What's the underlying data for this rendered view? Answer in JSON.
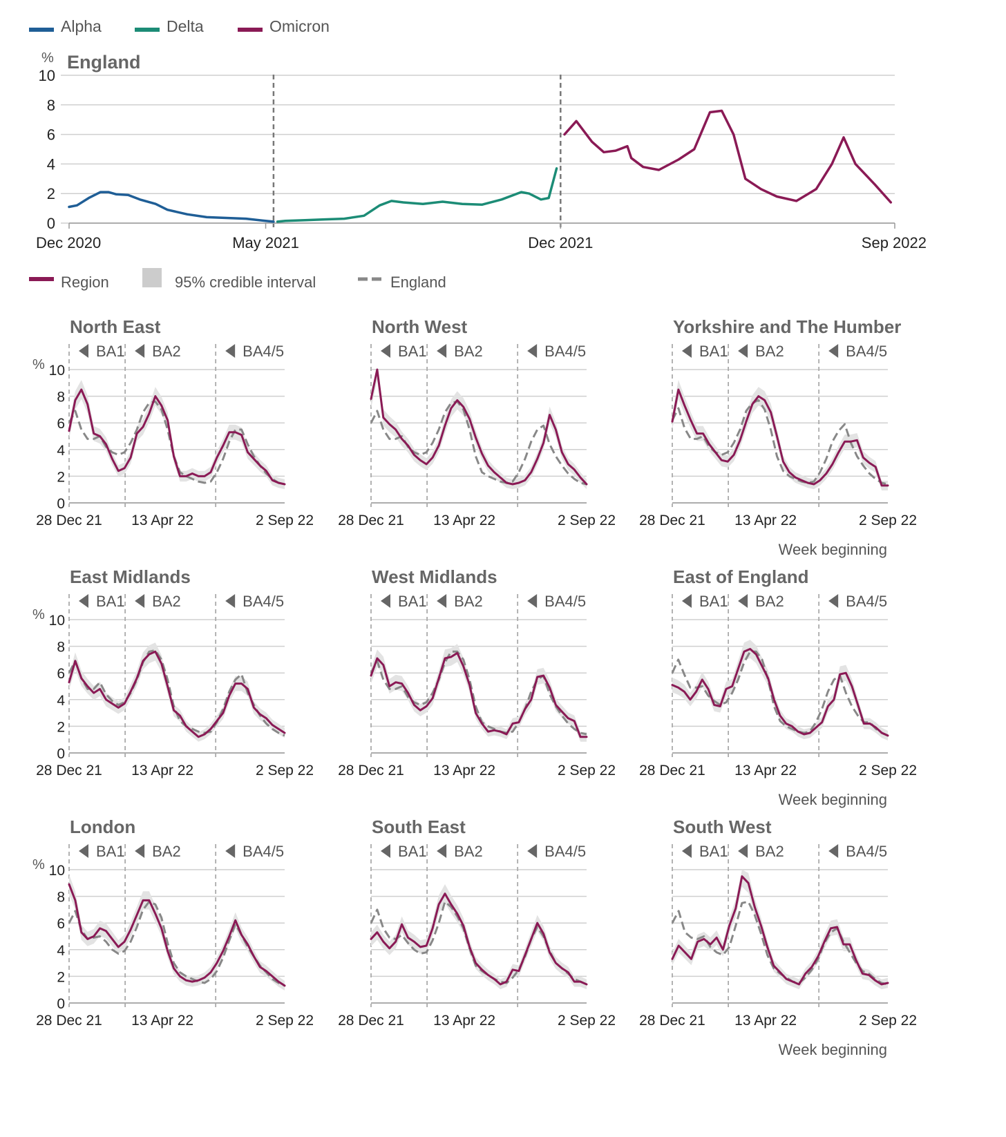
{
  "colors": {
    "alpha": "#1f5e96",
    "delta": "#1c8c76",
    "omicron": "#8a1a55",
    "england": "#888888",
    "ci": "#cccccc",
    "grid": "#cfcfcf",
    "text": "#222222",
    "muted": "#555555"
  },
  "top_legend": {
    "items": [
      {
        "label": "Alpha",
        "color": "#1f5e96"
      },
      {
        "label": "Delta",
        "color": "#1c8c76"
      },
      {
        "label": "Omicron",
        "color": "#8a1a55"
      }
    ]
  },
  "region_legend": {
    "region": "Region",
    "ci": "95% credible interval",
    "england": "England"
  },
  "week_beginning": "Week beginning",
  "chart_data": [
    {
      "type": "line",
      "title": "England",
      "ylabel": "%",
      "ylim": [
        0,
        10
      ],
      "yticks": [
        0,
        2,
        4,
        6,
        8,
        10
      ],
      "xlim": [
        0,
        21
      ],
      "xtick_labels": [
        {
          "x": 0,
          "label": "Dec 2020"
        },
        {
          "x": 5,
          "label": "May 2021"
        },
        {
          "x": 12.5,
          "label": "Dec 2021"
        },
        {
          "x": 21,
          "label": "Sep 2022"
        }
      ],
      "vlines": [
        5.2,
        12.5
      ],
      "series": [
        {
          "name": "Alpha",
          "color": "#1f5e96",
          "x": [
            0,
            0.2,
            0.5,
            0.8,
            1.0,
            1.2,
            1.5,
            1.8,
            2.2,
            2.5,
            3.0,
            3.5,
            4.0,
            4.5,
            5.0,
            5.2
          ],
          "y": [
            1.1,
            1.2,
            1.7,
            2.1,
            2.1,
            1.95,
            1.9,
            1.6,
            1.3,
            0.9,
            0.6,
            0.4,
            0.35,
            0.3,
            0.15,
            0.1
          ]
        },
        {
          "name": "Delta",
          "color": "#1c8c76",
          "x": [
            5.3,
            5.5,
            6.0,
            6.5,
            7.0,
            7.5,
            7.9,
            8.2,
            8.5,
            9.0,
            9.5,
            10.0,
            10.5,
            11.0,
            11.5,
            11.7,
            12.0,
            12.2,
            12.4
          ],
          "y": [
            0.1,
            0.15,
            0.2,
            0.25,
            0.3,
            0.5,
            1.2,
            1.5,
            1.4,
            1.3,
            1.45,
            1.3,
            1.25,
            1.6,
            2.1,
            2.0,
            1.6,
            1.7,
            3.7
          ]
        },
        {
          "name": "Omicron",
          "color": "#8a1a55",
          "x": [
            12.6,
            12.9,
            13.3,
            13.6,
            13.9,
            14.2,
            14.3,
            14.6,
            15.0,
            15.5,
            15.9,
            16.3,
            16.6,
            16.9,
            17.2,
            17.6,
            18.0,
            18.5,
            19.0,
            19.4,
            19.7,
            20.0,
            20.5,
            20.9
          ],
          "y": [
            6.0,
            6.9,
            5.5,
            4.8,
            4.9,
            5.2,
            4.4,
            3.8,
            3.6,
            4.3,
            5.0,
            7.5,
            7.6,
            6.0,
            3.0,
            2.3,
            1.8,
            1.5,
            2.3,
            4.0,
            5.8,
            4.0,
            2.6,
            1.4
          ]
        }
      ]
    },
    {
      "type": "line",
      "title": "North East",
      "ylabel": "%",
      "ylim": [
        0,
        10
      ],
      "yticks": [
        0,
        2,
        4,
        6,
        8,
        10
      ],
      "variant_markers": [
        "BA1",
        "BA2",
        "BA4/5"
      ],
      "xtick_labels": [
        "28 Dec 21",
        "13 Apr 22",
        "2 Sep 22"
      ],
      "region": [
        5.4,
        7.7,
        8.5,
        7.4,
        5.2,
        5.0,
        4.4,
        3.3,
        2.4,
        2.6,
        3.4,
        5.2,
        5.7,
        6.7,
        8.0,
        7.3,
        6.2,
        3.5,
        2.0,
        2.0,
        2.2,
        2.0,
        2.0,
        2.3,
        3.4,
        4.3,
        5.3,
        5.3,
        5.1,
        3.8,
        3.3,
        2.8,
        2.4,
        1.7,
        1.5,
        1.4
      ],
      "england": [
        6.0,
        6.9,
        5.5,
        4.8,
        4.8,
        5.0,
        4.2,
        3.8,
        3.6,
        3.8,
        4.5,
        5.5,
        6.8,
        7.5,
        7.6,
        7.0,
        5.5,
        3.5,
        2.3,
        2.0,
        1.8,
        1.6,
        1.5,
        1.6,
        2.3,
        3.3,
        4.6,
        5.5,
        5.5,
        4.4,
        3.5,
        2.8,
        2.2,
        1.8,
        1.5,
        1.4
      ]
    },
    {
      "type": "line",
      "title": "North West",
      "ylabel": "%",
      "ylim": [
        0,
        10
      ],
      "yticks": [
        0,
        2,
        4,
        6,
        8,
        10
      ],
      "variant_markers": [
        "BA1",
        "BA2",
        "BA4/5"
      ],
      "xtick_labels": [
        "28 Dec 21",
        "13 Apr 22",
        "2 Sep 22"
      ],
      "region": [
        7.8,
        10.0,
        6.4,
        5.9,
        5.5,
        4.8,
        4.3,
        3.6,
        3.2,
        2.9,
        3.4,
        4.3,
        5.8,
        7.1,
        7.7,
        7.2,
        6.3,
        4.9,
        3.7,
        2.8,
        2.3,
        1.9,
        1.5,
        1.4,
        1.5,
        1.7,
        2.3,
        3.3,
        4.5,
        6.6,
        5.5,
        3.8,
        2.9,
        2.5,
        1.9,
        1.4
      ],
      "england": [
        6.0,
        6.9,
        5.5,
        4.8,
        4.8,
        5.0,
        4.2,
        3.8,
        3.6,
        3.8,
        4.5,
        5.5,
        6.8,
        7.5,
        7.6,
        7.0,
        5.5,
        3.5,
        2.3,
        2.0,
        1.8,
        1.6,
        1.5,
        1.6,
        2.3,
        3.3,
        4.6,
        5.5,
        5.8,
        4.4,
        3.5,
        2.8,
        2.2,
        1.8,
        1.5,
        1.4
      ]
    },
    {
      "type": "line",
      "title": "Yorkshire and The Humber",
      "ylabel": "%",
      "ylim": [
        0,
        10
      ],
      "yticks": [
        0,
        2,
        4,
        6,
        8,
        10
      ],
      "variant_markers": [
        "BA1",
        "BA2",
        "BA4/5"
      ],
      "xtick_labels": [
        "28 Dec 21",
        "13 Apr 22",
        "2 Sep 22"
      ],
      "region": [
        6.1,
        8.5,
        7.3,
        6.2,
        5.2,
        5.2,
        4.4,
        3.8,
        3.2,
        3.1,
        3.6,
        4.7,
        6.1,
        7.4,
        8.0,
        7.7,
        6.8,
        5.0,
        3.1,
        2.3,
        1.9,
        1.7,
        1.5,
        1.4,
        1.7,
        2.2,
        2.9,
        3.8,
        4.6,
        4.6,
        4.7,
        3.4,
        3.0,
        2.7,
        1.3,
        1.3
      ],
      "england": [
        6.2,
        7.1,
        5.6,
        4.8,
        4.8,
        5.0,
        4.2,
        3.8,
        3.6,
        3.8,
        4.5,
        5.5,
        6.9,
        7.5,
        7.7,
        7.0,
        5.5,
        3.5,
        2.4,
        2.0,
        1.8,
        1.6,
        1.5,
        1.6,
        2.3,
        3.3,
        4.6,
        5.4,
        5.9,
        4.5,
        3.5,
        2.8,
        2.2,
        1.8,
        1.5,
        1.4
      ]
    },
    {
      "type": "line",
      "title": "East Midlands",
      "ylabel": "%",
      "ylim": [
        0,
        10
      ],
      "yticks": [
        0,
        2,
        4,
        6,
        8,
        10
      ],
      "variant_markers": [
        "BA1",
        "BA2",
        "BA4/5"
      ],
      "xtick_labels": [
        "28 Dec 21",
        "13 Apr 22",
        "2 Sep 22"
      ],
      "region": [
        5.3,
        6.9,
        5.6,
        5.0,
        4.5,
        4.8,
        4.0,
        3.7,
        3.4,
        3.7,
        4.6,
        5.6,
        6.9,
        7.4,
        7.6,
        6.7,
        5.0,
        3.2,
        2.8,
        2.0,
        1.6,
        1.2,
        1.4,
        1.8,
        2.4,
        3.0,
        4.3,
        5.2,
        5.2,
        4.8,
        3.4,
        2.9,
        2.6,
        2.1,
        1.8,
        1.5
      ],
      "england": [
        6.0,
        6.9,
        5.6,
        4.8,
        4.8,
        5.3,
        4.4,
        3.9,
        3.6,
        3.8,
        4.5,
        5.5,
        6.8,
        7.6,
        7.7,
        7.0,
        5.5,
        3.5,
        2.4,
        2.0,
        1.8,
        1.6,
        1.5,
        1.6,
        2.3,
        3.3,
        4.6,
        5.5,
        5.9,
        4.5,
        3.6,
        2.8,
        2.2,
        1.8,
        1.5,
        1.3
      ]
    },
    {
      "type": "line",
      "title": "West Midlands",
      "ylabel": "%",
      "ylim": [
        0,
        10
      ],
      "yticks": [
        0,
        2,
        4,
        6,
        8,
        10
      ],
      "variant_markers": [
        "BA1",
        "BA2",
        "BA4/5"
      ],
      "xtick_labels": [
        "28 Dec 21",
        "13 Apr 22",
        "2 Sep 22"
      ],
      "region": [
        5.8,
        7.1,
        6.6,
        5.0,
        5.3,
        5.2,
        4.5,
        3.6,
        3.2,
        3.5,
        4.1,
        5.6,
        7.1,
        7.2,
        7.5,
        6.5,
        5.1,
        3.0,
        2.2,
        1.6,
        1.7,
        1.6,
        1.4,
        2.2,
        2.3,
        3.3,
        4.0,
        5.7,
        5.8,
        4.9,
        3.6,
        3.1,
        2.6,
        2.4,
        1.2,
        1.2
      ],
      "england": [
        6.0,
        6.9,
        5.5,
        4.8,
        4.8,
        5.0,
        4.2,
        3.8,
        3.6,
        3.8,
        4.5,
        5.5,
        6.8,
        7.6,
        7.6,
        7.0,
        5.5,
        3.5,
        2.3,
        2.0,
        1.8,
        1.6,
        1.5,
        1.6,
        2.3,
        3.3,
        4.6,
        5.5,
        5.8,
        4.4,
        3.5,
        2.8,
        2.2,
        1.8,
        1.5,
        1.4
      ]
    },
    {
      "type": "line",
      "title": "East of England",
      "ylabel": "%",
      "ylim": [
        0,
        10
      ],
      "yticks": [
        0,
        2,
        4,
        6,
        8,
        10
      ],
      "variant_markers": [
        "BA1",
        "BA2",
        "BA4/5"
      ],
      "xtick_labels": [
        "28 Dec 21",
        "13 Apr 22",
        "2 Sep 22"
      ],
      "region": [
        5.1,
        4.9,
        4.6,
        4.0,
        4.6,
        5.5,
        4.8,
        3.6,
        3.5,
        4.8,
        5.0,
        6.3,
        7.6,
        7.8,
        7.4,
        6.5,
        5.6,
        4.0,
        2.8,
        2.2,
        2.0,
        1.6,
        1.4,
        1.5,
        1.9,
        2.3,
        3.5,
        4.0,
        5.9,
        6.0,
        5.0,
        3.6,
        2.2,
        2.2,
        1.9,
        1.5,
        1.3
      ],
      "england": [
        6.0,
        7.0,
        5.9,
        4.9,
        4.9,
        5.0,
        4.3,
        3.9,
        3.6,
        3.8,
        4.5,
        5.5,
        6.8,
        7.6,
        7.6,
        7.0,
        5.5,
        3.5,
        2.4,
        2.0,
        1.8,
        1.6,
        1.5,
        1.6,
        2.3,
        3.3,
        4.6,
        5.5,
        5.8,
        4.5,
        3.5,
        2.8,
        2.3,
        2.3,
        1.8,
        1.5,
        1.3
      ]
    },
    {
      "type": "line",
      "title": "London",
      "ylabel": "%",
      "ylim": [
        0,
        10
      ],
      "yticks": [
        0,
        2,
        4,
        6,
        8,
        10
      ],
      "variant_markers": [
        "BA1",
        "BA2",
        "BA4/5"
      ],
      "xtick_labels": [
        "28 Dec 21",
        "13 Apr 22",
        "2 Sep 22"
      ],
      "region": [
        8.9,
        7.7,
        5.3,
        4.8,
        5.0,
        5.6,
        5.4,
        4.8,
        4.2,
        4.6,
        5.5,
        6.6,
        7.7,
        7.7,
        6.7,
        5.6,
        3.9,
        2.6,
        2.0,
        1.7,
        1.6,
        1.7,
        1.9,
        2.3,
        3.0,
        3.9,
        5.0,
        6.2,
        5.1,
        4.4,
        3.5,
        2.7,
        2.4,
        2.0,
        1.6,
        1.3
      ],
      "england": [
        6.0,
        6.9,
        5.5,
        4.8,
        4.9,
        5.0,
        4.6,
        4.0,
        3.7,
        3.9,
        4.6,
        5.7,
        7.0,
        7.6,
        7.4,
        6.4,
        4.5,
        3.0,
        2.3,
        2.0,
        1.8,
        1.6,
        1.5,
        1.8,
        2.4,
        3.4,
        4.7,
        5.9,
        5.1,
        4.2,
        3.5,
        2.8,
        2.3,
        1.8,
        1.5,
        1.3
      ]
    },
    {
      "type": "line",
      "title": "South East",
      "ylabel": "%",
      "ylim": [
        0,
        10
      ],
      "yticks": [
        0,
        2,
        4,
        6,
        8,
        10
      ],
      "variant_markers": [
        "BA1",
        "BA2",
        "BA4/5"
      ],
      "xtick_labels": [
        "28 Dec 21",
        "13 Apr 22",
        "2 Sep 22"
      ],
      "region": [
        4.8,
        5.3,
        4.6,
        4.1,
        4.6,
        5.9,
        4.9,
        4.6,
        4.2,
        4.3,
        5.6,
        7.4,
        8.2,
        7.4,
        6.7,
        5.8,
        4.2,
        3.0,
        2.5,
        2.1,
        1.8,
        1.4,
        1.6,
        2.5,
        2.4,
        3.6,
        4.8,
        6.0,
        5.2,
        3.8,
        3.0,
        2.6,
        2.3,
        1.6,
        1.6,
        1.4
      ],
      "england": [
        6.0,
        7.0,
        5.6,
        4.9,
        4.8,
        5.1,
        4.5,
        4.0,
        3.7,
        3.8,
        4.7,
        6.0,
        7.6,
        7.2,
        6.5,
        5.6,
        4.1,
        2.8,
        2.4,
        2.1,
        1.8,
        1.6,
        1.5,
        1.9,
        2.5,
        3.5,
        4.8,
        5.7,
        5.0,
        3.9,
        3.0,
        2.6,
        2.2,
        1.8,
        1.6,
        1.4
      ]
    },
    {
      "type": "line",
      "title": "South West",
      "ylabel": "%",
      "ylim": [
        0,
        10
      ],
      "yticks": [
        0,
        2,
        4,
        6,
        8,
        10
      ],
      "variant_markers": [
        "BA1",
        "BA2",
        "BA4/5"
      ],
      "xtick_labels": [
        "28 Dec 21",
        "13 Apr 22",
        "2 Sep 22"
      ],
      "region": [
        3.3,
        4.3,
        3.8,
        3.3,
        4.6,
        4.8,
        4.4,
        4.9,
        4.0,
        5.8,
        7.1,
        9.5,
        9.0,
        7.2,
        5.8,
        4.2,
        2.8,
        2.3,
        1.8,
        1.6,
        1.4,
        2.2,
        2.7,
        3.5,
        4.6,
        5.6,
        5.7,
        4.4,
        4.4,
        3.2,
        2.2,
        2.1,
        1.7,
        1.4,
        1.5
      ],
      "england": [
        6.0,
        6.9,
        5.3,
        4.9,
        4.8,
        5.0,
        4.2,
        3.8,
        3.6,
        4.2,
        5.8,
        7.5,
        7.6,
        6.6,
        5.2,
        3.6,
        2.6,
        2.2,
        1.9,
        1.6,
        1.5,
        1.9,
        2.5,
        3.3,
        4.5,
        5.3,
        5.6,
        4.6,
        3.8,
        3.0,
        2.4,
        2.2,
        1.8,
        1.5,
        1.4
      ]
    }
  ]
}
